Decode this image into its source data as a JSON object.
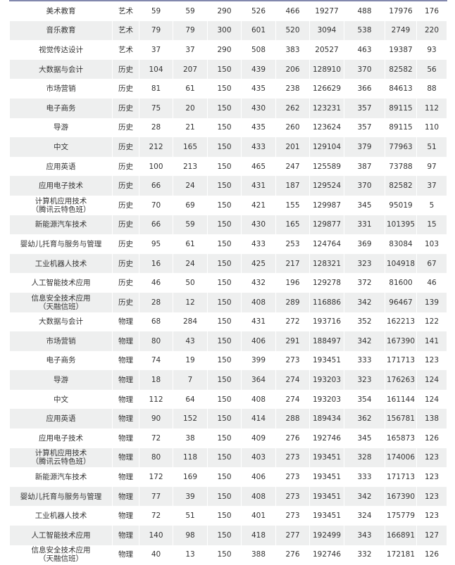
{
  "rows": [
    [
      "美术教育",
      "艺术",
      "59",
      "59",
      "290",
      "526",
      "466",
      "19277",
      "488",
      "17976",
      "176"
    ],
    [
      "音乐教育",
      "艺术",
      "79",
      "79",
      "300",
      "601",
      "520",
      "3094",
      "538",
      "2749",
      "220"
    ],
    [
      "视觉传达设计",
      "艺术",
      "37",
      "37",
      "290",
      "508",
      "383",
      "20527",
      "463",
      "19387",
      "93"
    ],
    [
      "大数据与会计",
      "历史",
      "104",
      "207",
      "150",
      "439",
      "206",
      "128910",
      "370",
      "82582",
      "56"
    ],
    [
      "市场营销",
      "历史",
      "81",
      "61",
      "150",
      "435",
      "238",
      "126629",
      "366",
      "84613",
      "88"
    ],
    [
      "电子商务",
      "历史",
      "75",
      "20",
      "150",
      "430",
      "262",
      "123231",
      "357",
      "89115",
      "112"
    ],
    [
      "导游",
      "历史",
      "28",
      "21",
      "150",
      "435",
      "260",
      "123624",
      "357",
      "89115",
      "110"
    ],
    [
      "中文",
      "历史",
      "212",
      "165",
      "150",
      "433",
      "201",
      "129104",
      "379",
      "77963",
      "51"
    ],
    [
      "应用英语",
      "历史",
      "100",
      "213",
      "150",
      "465",
      "247",
      "125589",
      "387",
      "73788",
      "97"
    ],
    [
      "应用电子技术",
      "历史",
      "66",
      "24",
      "150",
      "431",
      "187",
      "129524",
      "370",
      "82582",
      "37"
    ],
    [
      "计算机应用技术\n（腾讯云特色班）",
      "历史",
      "70",
      "69",
      "150",
      "421",
      "155",
      "129987",
      "345",
      "95019",
      "5"
    ],
    [
      "新能源汽车技术",
      "历史",
      "66",
      "59",
      "150",
      "430",
      "165",
      "129877",
      "331",
      "101395",
      "15"
    ],
    [
      "婴幼儿托育与服务与管理",
      "历史",
      "95",
      "61",
      "150",
      "433",
      "253",
      "124764",
      "369",
      "83084",
      "103"
    ],
    [
      "工业机器人技术",
      "历史",
      "16",
      "24",
      "150",
      "425",
      "217",
      "128321",
      "323",
      "104918",
      "67"
    ],
    [
      "人工智能技术应用",
      "历史",
      "46",
      "50",
      "150",
      "432",
      "196",
      "129278",
      "372",
      "81600",
      "46"
    ],
    [
      "信息安全技术应用\n（天融信班）",
      "历史",
      "28",
      "12",
      "150",
      "408",
      "289",
      "116886",
      "342",
      "96467",
      "139"
    ],
    [
      "大数据与会计",
      "物理",
      "68",
      "284",
      "150",
      "431",
      "272",
      "193716",
      "352",
      "162213",
      "122"
    ],
    [
      "市场营销",
      "物理",
      "80",
      "43",
      "150",
      "406",
      "291",
      "188497",
      "342",
      "167390",
      "141"
    ],
    [
      "电子商务",
      "物理",
      "74",
      "19",
      "150",
      "399",
      "273",
      "193451",
      "333",
      "171713",
      "123"
    ],
    [
      "导游",
      "物理",
      "18",
      "7",
      "150",
      "364",
      "274",
      "193203",
      "323",
      "176263",
      "124"
    ],
    [
      "中文",
      "物理",
      "112",
      "64",
      "150",
      "408",
      "274",
      "193203",
      "354",
      "161144",
      "124"
    ],
    [
      "应用英语",
      "物理",
      "90",
      "152",
      "150",
      "414",
      "288",
      "189434",
      "362",
      "156781",
      "138"
    ],
    [
      "应用电子技术",
      "物理",
      "72",
      "38",
      "150",
      "409",
      "276",
      "192746",
      "345",
      "165873",
      "126"
    ],
    [
      "计算机应用技术\n（腾讯云特色班）",
      "物理",
      "80",
      "118",
      "150",
      "403",
      "273",
      "193451",
      "328",
      "174006",
      "123"
    ],
    [
      "新能源汽车技术",
      "物理",
      "172",
      "169",
      "150",
      "406",
      "273",
      "193451",
      "333",
      "171713",
      "123"
    ],
    [
      "婴幼儿托育与服务与管理",
      "物理",
      "77",
      "39",
      "150",
      "408",
      "273",
      "193451",
      "342",
      "167390",
      "123"
    ],
    [
      "工业机器人技术",
      "物理",
      "72",
      "51",
      "150",
      "401",
      "273",
      "193451",
      "324",
      "175779",
      "123"
    ],
    [
      "人工智能技术应用",
      "物理",
      "140",
      "98",
      "150",
      "418",
      "277",
      "192499",
      "343",
      "166891",
      "127"
    ],
    [
      "信息安全技术应用\n（天融信班）",
      "物理",
      "40",
      "13",
      "150",
      "388",
      "276",
      "192746",
      "332",
      "172181",
      "126"
    ]
  ]
}
